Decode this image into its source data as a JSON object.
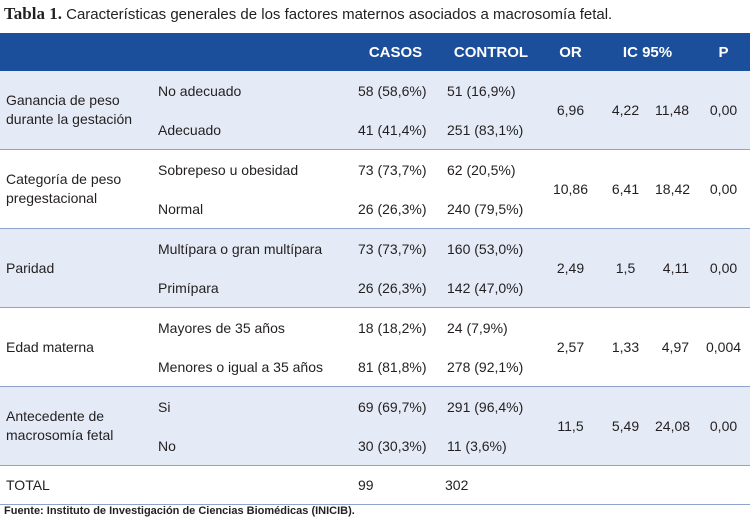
{
  "caption": {
    "lead": "Tabla 1.",
    "text": " Características generales de los factores maternos asociados a macrosomía fetal."
  },
  "headers": {
    "col0": "",
    "col1": "",
    "casos": "CASOS",
    "control": "CONTROL",
    "or": "OR",
    "ic": "IC 95%",
    "p": "P"
  },
  "groups": [
    {
      "label": "Ganancia de peso durante la gestación",
      "or": "6,96",
      "ic_low": "4,22",
      "ic_high": "11,48",
      "p": "0,00",
      "rows": [
        {
          "sub": "No adecuado",
          "casos": "58 (58,6%)",
          "control": "51 (16,9%)"
        },
        {
          "sub": "Adecuado",
          "casos": "41 (41,4%)",
          "control": "251 (83,1%)"
        }
      ]
    },
    {
      "label": "Categoría de peso pregestacional",
      "or": "10,86",
      "ic_low": "6,41",
      "ic_high": "18,42",
      "p": "0,00",
      "rows": [
        {
          "sub": "Sobrepeso u obesidad",
          "casos": "73 (73,7%)",
          "control": "62 (20,5%)"
        },
        {
          "sub": "Normal",
          "casos": "26 (26,3%)",
          "control": "240 (79,5%)"
        }
      ]
    },
    {
      "label": "Paridad",
      "or": "2,49",
      "ic_low": "1,5",
      "ic_high": "4,11",
      "p": "0,00",
      "rows": [
        {
          "sub": "Multípara o gran multípara",
          "casos": "73 (73,7%)",
          "control": "160 (53,0%)"
        },
        {
          "sub": "Primípara",
          "casos": "26 (26,3%)",
          "control": "142 (47,0%)"
        }
      ]
    },
    {
      "label": "Edad materna",
      "or": "2,57",
      "ic_low": "1,33",
      "ic_high": "4,97",
      "p": "0,004",
      "rows": [
        {
          "sub": "Mayores de 35 años",
          "casos": "18 (18,2%)",
          "control": "24 (7,9%)"
        },
        {
          "sub": "Menores o igual a 35 años",
          "casos": "81 (81,8%)",
          "control": "278 (92,1%)"
        }
      ]
    },
    {
      "label": "Antecedente de macrosomía fetal",
      "or": "11,5",
      "ic_low": "5,49",
      "ic_high": "24,08",
      "p": "0,00",
      "rows": [
        {
          "sub": "Si",
          "casos": "69 (69,7%)",
          "control": "291 (96,4%)"
        },
        {
          "sub": "No",
          "casos": "30 (30,3%)",
          "control": "11 (3,6%)"
        }
      ]
    }
  ],
  "total": {
    "label": "TOTAL",
    "casos": "99",
    "control": "302"
  },
  "footer": "Fuente: Instituto de Investigación de Ciencias Biomédicas (INICIB).",
  "colors": {
    "header_bg": "#1b4f9b",
    "band_bg": "#e5ebf6",
    "rule": "#8ea4c8"
  }
}
